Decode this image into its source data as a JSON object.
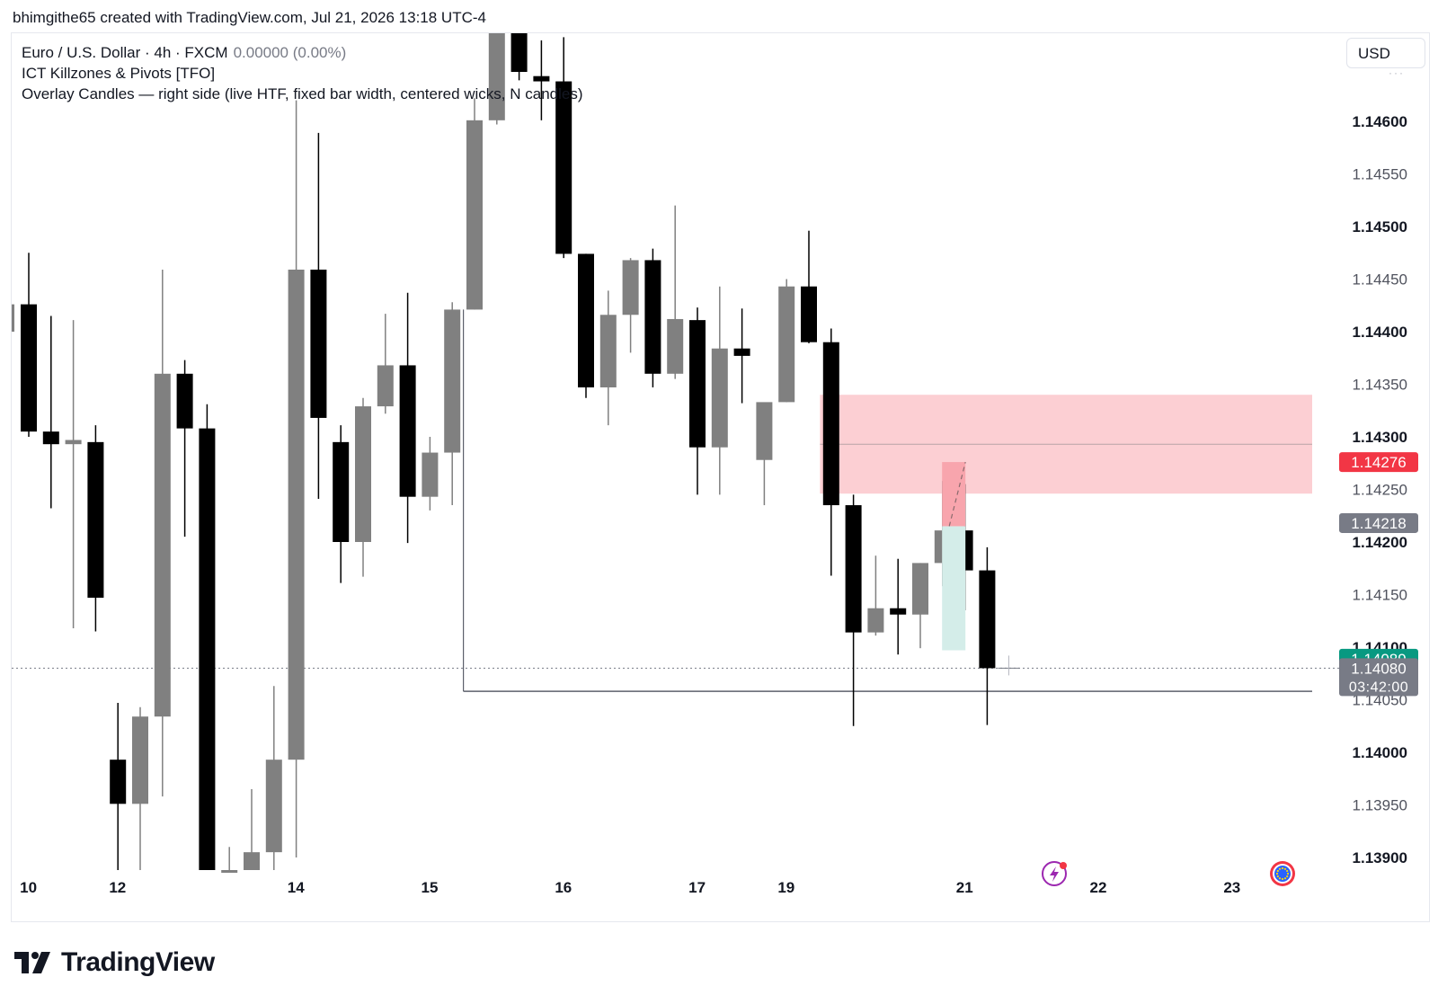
{
  "header": {
    "attribution": "bhimgithe65 created with TradingView.com, Jul 21, 2026 13:18 UTC-4"
  },
  "legend": {
    "symbol": "Euro / U.S. Dollar · 4h · FXCM",
    "change": "0.00000 (0.00%)",
    "indicator1": "ICT Killzones & Pivots [TFO]",
    "indicator2": "Overlay Candles — right side (live HTF, fixed bar width, centered wicks, N candles)"
  },
  "currency_button": "USD",
  "footer": {
    "brand": "TradingView"
  },
  "icons": [
    "tradingview-logo-icon",
    "lightning-event-icon",
    "eu-flag-icon"
  ],
  "colors": {
    "bull": "#808080",
    "bear": "#000000",
    "zone": "#fccfd3",
    "overlay_bull": "#d4ede9",
    "overlay_bear": "#f8a5ad",
    "price_tag_red": "#f23645",
    "price_tag_green": "#089981",
    "price_tag_gray": "#787b86"
  },
  "chart_data": {
    "type": "candlestick",
    "timeframe": "4h",
    "y_axis": {
      "min": 1.1387,
      "max": 1.1468,
      "ticks": [
        "1.14600",
        "1.14550",
        "1.14500",
        "1.14450",
        "1.14400",
        "1.14350",
        "1.14300",
        "1.14250",
        "1.14200",
        "1.14150",
        "1.14100",
        "1.14050",
        "1.14000",
        "1.13950",
        "1.13900"
      ],
      "bold_ticks": [
        "1.14600",
        "1.14500",
        "1.14400",
        "1.14300",
        "1.14200",
        "1.14100",
        "1.14000",
        "1.13900"
      ]
    },
    "x_axis": {
      "labels": [
        {
          "label": "10",
          "slot": -0.5
        },
        {
          "label": "12",
          "slot": 3.5
        },
        {
          "label": "14",
          "slot": 11.5
        },
        {
          "label": "15",
          "slot": 17.5
        },
        {
          "label": "16",
          "slot": 23.5
        },
        {
          "label": "17",
          "slot": 29.5
        },
        {
          "label": "19",
          "slot": 33.5
        },
        {
          "label": "21",
          "slot": 41.5
        },
        {
          "label": "22",
          "slot": 47.5
        },
        {
          "label": "23",
          "slot": 53.5
        }
      ]
    },
    "candles": [
      {
        "i": 0,
        "o": 1.14426,
        "h": 1.14475,
        "l": 1.143,
        "c": 1.14305
      },
      {
        "i": 1,
        "o": 1.14305,
        "h": 1.14415,
        "l": 1.14232,
        "c": 1.14293
      },
      {
        "i": 2,
        "o": 1.14293,
        "h": 1.14411,
        "l": 1.14118,
        "c": 1.14297
      },
      {
        "i": 3,
        "o": 1.14295,
        "h": 1.14311,
        "l": 1.14115,
        "c": 1.14147
      },
      {
        "i": 4,
        "o": 1.13993,
        "h": 1.14047,
        "l": 1.1386,
        "c": 1.13951
      },
      {
        "i": 5,
        "o": 1.13951,
        "h": 1.14043,
        "l": 1.1386,
        "c": 1.14034
      },
      {
        "i": 6,
        "o": 1.14034,
        "h": 1.14459,
        "l": 1.13958,
        "c": 1.1436
      },
      {
        "i": 7,
        "o": 1.1436,
        "h": 1.14373,
        "l": 1.14205,
        "c": 1.14308
      },
      {
        "i": 8,
        "o": 1.14308,
        "h": 1.14331,
        "l": 1.1386,
        "c": 1.1386
      },
      {
        "i": 9,
        "o": 1.1388,
        "h": 1.1391,
        "l": 1.1386,
        "c": 1.1388
      },
      {
        "i": 10,
        "o": 1.1388,
        "h": 1.13965,
        "l": 1.1386,
        "c": 1.13905
      },
      {
        "i": 11,
        "o": 1.13905,
        "h": 1.14063,
        "l": 1.1388,
        "c": 1.13993
      },
      {
        "i": 12,
        "o": 1.13993,
        "h": 1.1462,
        "l": 1.139,
        "c": 1.14459
      },
      {
        "i": 13,
        "o": 1.14459,
        "h": 1.14589,
        "l": 1.14241,
        "c": 1.14318
      },
      {
        "i": 14,
        "o": 1.14295,
        "h": 1.14311,
        "l": 1.14161,
        "c": 1.142
      },
      {
        "i": 15,
        "o": 1.142,
        "h": 1.14337,
        "l": 1.14167,
        "c": 1.14329
      },
      {
        "i": 16,
        "o": 1.14329,
        "h": 1.14417,
        "l": 1.14322,
        "c": 1.14368
      },
      {
        "i": 17,
        "o": 1.14368,
        "h": 1.14437,
        "l": 1.14199,
        "c": 1.14243
      },
      {
        "i": 18,
        "o": 1.14243,
        "h": 1.143,
        "l": 1.1423,
        "c": 1.14285
      },
      {
        "i": 19,
        "o": 1.14285,
        "h": 1.14428,
        "l": 1.14235,
        "c": 1.14421
      },
      {
        "i": 20,
        "o": 1.14421,
        "h": 1.14622,
        "l": 1.14421,
        "c": 1.14601
      },
      {
        "i": 21,
        "o": 1.14601,
        "h": 1.14695,
        "l": 1.14597,
        "c": 1.14694
      },
      {
        "i": 22,
        "o": 1.14694,
        "h": 1.14709,
        "l": 1.14639,
        "c": 1.14647
      },
      {
        "i": 23,
        "o": 1.14643,
        "h": 1.14677,
        "l": 1.14601,
        "c": 1.14638
      },
      {
        "i": 24,
        "o": 1.14638,
        "h": 1.1468,
        "l": 1.1447,
        "c": 1.14474
      },
      {
        "i": 25,
        "o": 1.14474,
        "h": 1.14474,
        "l": 1.14337,
        "c": 1.14347
      },
      {
        "i": 26,
        "o": 1.14347,
        "h": 1.14439,
        "l": 1.14311,
        "c": 1.14416
      },
      {
        "i": 27,
        "o": 1.14416,
        "h": 1.1447,
        "l": 1.1438,
        "c": 1.14468
      },
      {
        "i": 28,
        "o": 1.14468,
        "h": 1.14479,
        "l": 1.14347,
        "c": 1.1436
      },
      {
        "i": 29,
        "o": 1.1436,
        "h": 1.1452,
        "l": 1.14355,
        "c": 1.14412
      },
      {
        "i": 30,
        "o": 1.14411,
        "h": 1.14423,
        "l": 1.14245,
        "c": 1.1429
      },
      {
        "i": 31,
        "o": 1.1429,
        "h": 1.14443,
        "l": 1.14245,
        "c": 1.14384
      },
      {
        "i": 32,
        "o": 1.14384,
        "h": 1.14422,
        "l": 1.14332,
        "c": 1.14377
      },
      {
        "i": 33,
        "o": 1.14278,
        "h": 1.14332,
        "l": 1.14235,
        "c": 1.14333
      },
      {
        "i": 34,
        "o": 1.14333,
        "h": 1.1445,
        "l": 1.14333,
        "c": 1.14443
      },
      {
        "i": 35,
        "o": 1.14443,
        "h": 1.14496,
        "l": 1.14389,
        "c": 1.1439
      },
      {
        "i": 36,
        "o": 1.1439,
        "h": 1.14403,
        "l": 1.14168,
        "c": 1.14235
      },
      {
        "i": 37,
        "o": 1.14235,
        "h": 1.14245,
        "l": 1.14025,
        "c": 1.14114
      },
      {
        "i": 38,
        "o": 1.14114,
        "h": 1.14187,
        "l": 1.14111,
        "c": 1.14137
      },
      {
        "i": 39,
        "o": 1.14137,
        "h": 1.14184,
        "l": 1.14093,
        "c": 1.14131
      },
      {
        "i": 40,
        "o": 1.14131,
        "h": 1.1418,
        "l": 1.14099,
        "c": 1.1418
      },
      {
        "i": 41,
        "o": 1.1418,
        "h": 1.14258,
        "l": 1.14158,
        "c": 1.14211
      },
      {
        "i": 42,
        "o": 1.14211,
        "h": 1.14255,
        "l": 1.14135,
        "c": 1.14173
      },
      {
        "i": 43,
        "o": 1.14173,
        "h": 1.14195,
        "l": 1.14026,
        "c": 1.1408
      }
    ],
    "overlay_htf_candles": [
      {
        "slot": 41.5,
        "o": 1.14097,
        "h": 1.14276,
        "l": 1.14097,
        "c": 1.14215,
        "type": "bull"
      },
      {
        "slot": 41.5,
        "o": 1.14276,
        "h": 1.14276,
        "l": 1.14215,
        "c": 1.14215,
        "type": "bear"
      }
    ],
    "zones": [
      {
        "from_slot": 35.5,
        "to_slot": null,
        "top": 1.1434,
        "bottom": 1.14246,
        "mid": 1.14293,
        "color": "#fccfd3"
      }
    ],
    "horizontal_lines": [
      {
        "from_slot": 19.5,
        "to_slot": null,
        "price": 1.14058,
        "color": "#5d606b"
      }
    ],
    "price_tags": [
      {
        "price": 1.14276,
        "label": "1.14276",
        "color": "#f23645"
      },
      {
        "price": 1.14218,
        "label": "1.14218",
        "color": "#787b86"
      },
      {
        "price": 1.14089,
        "label": "1.14089",
        "color": "#089981"
      },
      {
        "price": 1.1408,
        "label": "1.14080",
        "sublabel": "03:42:00",
        "color": "#787b86"
      }
    ],
    "last_price": 1.1408
  }
}
